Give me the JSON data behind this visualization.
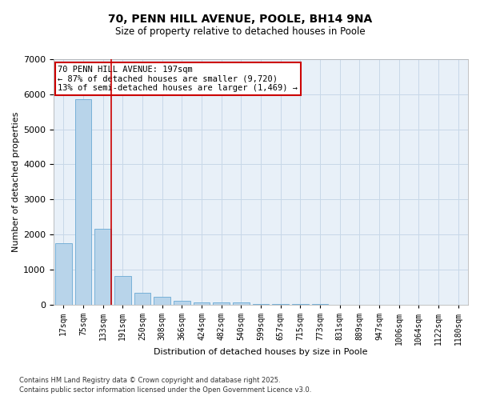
{
  "title_line1": "70, PENN HILL AVENUE, POOLE, BH14 9NA",
  "title_line2": "Size of property relative to detached houses in Poole",
  "xlabel": "Distribution of detached houses by size in Poole",
  "ylabel": "Number of detached properties",
  "categories": [
    "17sqm",
    "75sqm",
    "133sqm",
    "191sqm",
    "250sqm",
    "308sqm",
    "366sqm",
    "424sqm",
    "482sqm",
    "540sqm",
    "599sqm",
    "657sqm",
    "715sqm",
    "773sqm",
    "831sqm",
    "889sqm",
    "947sqm",
    "1006sqm",
    "1064sqm",
    "1122sqm",
    "1180sqm"
  ],
  "values": [
    1750,
    5850,
    2150,
    820,
    330,
    210,
    100,
    65,
    50,
    50,
    15,
    10,
    8,
    5,
    3,
    2,
    2,
    1,
    1,
    1,
    1
  ],
  "bar_color": "#b8d4ea",
  "bar_edge_color": "#6aaad4",
  "grid_color": "#c8d8e8",
  "background_color": "#e8f0f8",
  "vline_x_index": 2,
  "annotation_text": "70 PENN HILL AVENUE: 197sqm\n← 87% of detached houses are smaller (9,720)\n13% of semi-detached houses are larger (1,469) →",
  "annotation_box_color": "#ffffff",
  "annotation_border_color": "#cc0000",
  "vline_color": "#cc0000",
  "ylim": [
    0,
    7000
  ],
  "yticks": [
    0,
    1000,
    2000,
    3000,
    4000,
    5000,
    6000,
    7000
  ],
  "footnote1": "Contains HM Land Registry data © Crown copyright and database right 2025.",
  "footnote2": "Contains public sector information licensed under the Open Government Licence v3.0."
}
